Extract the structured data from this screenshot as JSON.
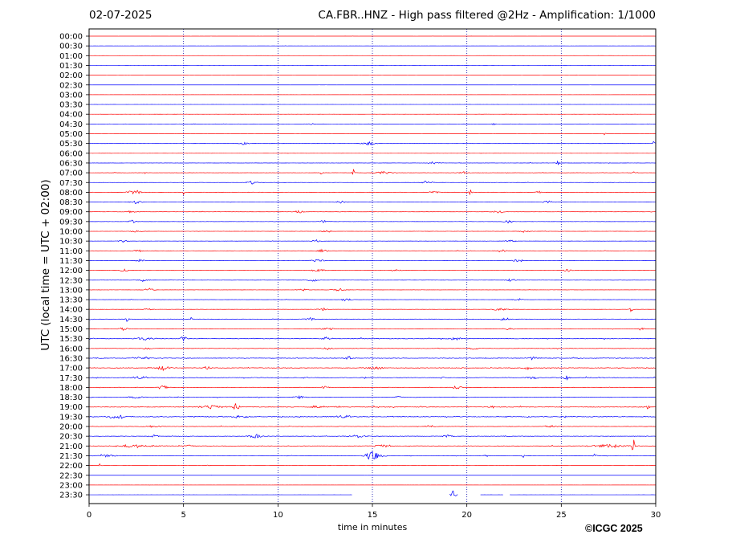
{
  "header": {
    "date": "02-07-2025",
    "title": "CA.FBR..HNZ - High pass filtered @2Hz - Amplification: 1/1000"
  },
  "copyright": "©ICGC 2025",
  "chart_data": {
    "type": "line",
    "title": "CA.FBR..HNZ - High pass filtered @2Hz - Amplification: 1/1000",
    "xlabel": "time in minutes",
    "ylabel": "UTC (local time = UTC + 02:00)",
    "xlim": [
      0,
      30
    ],
    "x_ticks": [
      0,
      5,
      10,
      15,
      20,
      25,
      30
    ],
    "grid": "vertical dotted at 5-minute intervals",
    "colors": {
      "red": "#ff0000",
      "blue": "#0000ff"
    },
    "rows": [
      {
        "label": "00:00",
        "color": "red",
        "activity": 0.05,
        "events": []
      },
      {
        "label": "00:30",
        "color": "blue",
        "activity": 0.05,
        "events": []
      },
      {
        "label": "01:00",
        "color": "red",
        "activity": 0.05,
        "events": []
      },
      {
        "label": "01:30",
        "color": "blue",
        "activity": 0.05,
        "events": []
      },
      {
        "label": "02:00",
        "color": "red",
        "activity": 0.05,
        "events": []
      },
      {
        "label": "02:30",
        "color": "blue",
        "activity": 0.05,
        "events": []
      },
      {
        "label": "03:00",
        "color": "red",
        "activity": 0.05,
        "events": []
      },
      {
        "label": "03:30",
        "color": "blue",
        "activity": 0.05,
        "events": []
      },
      {
        "label": "04:00",
        "color": "red",
        "activity": 0.06,
        "events": []
      },
      {
        "label": "04:30",
        "color": "blue",
        "activity": 0.1,
        "events": [
          [
            5.5,
            0.2,
            1
          ],
          [
            11.8,
            0.2,
            1
          ],
          [
            21.4,
            0.1,
            4
          ]
        ]
      },
      {
        "label": "05:00",
        "color": "red",
        "activity": 0.06,
        "events": [
          [
            27.3,
            0.1,
            2
          ]
        ]
      },
      {
        "label": "05:30",
        "color": "blue",
        "activity": 0.15,
        "events": [
          [
            8.2,
            0.3,
            2
          ],
          [
            14.8,
            0.4,
            3
          ],
          [
            29.9,
            0.1,
            3
          ]
        ]
      },
      {
        "label": "06:00",
        "color": "red",
        "activity": 0.06,
        "events": []
      },
      {
        "label": "06:30",
        "color": "blue",
        "activity": 0.15,
        "events": [
          [
            18.2,
            0.4,
            2
          ],
          [
            24.8,
            0.1,
            4
          ]
        ]
      },
      {
        "label": "07:00",
        "color": "red",
        "activity": 0.2,
        "events": [
          [
            3,
            0.1,
            2
          ],
          [
            12.3,
            0.1,
            3
          ],
          [
            14,
            0.1,
            6
          ],
          [
            15.5,
            0.6,
            2
          ],
          [
            19.8,
            0.3,
            2
          ],
          [
            28.8,
            0.2,
            2
          ]
        ]
      },
      {
        "label": "07:30",
        "color": "blue",
        "activity": 0.15,
        "events": [
          [
            8.6,
            0.3,
            2
          ],
          [
            17.9,
            0.3,
            3
          ]
        ]
      },
      {
        "label": "08:00",
        "color": "red",
        "activity": 0.2,
        "events": [
          [
            2.4,
            0.4,
            3
          ],
          [
            5,
            0.1,
            3
          ],
          [
            18.3,
            0.3,
            2
          ],
          [
            20.2,
            0.1,
            4
          ],
          [
            23.8,
            0.2,
            2
          ]
        ]
      },
      {
        "label": "08:30",
        "color": "blue",
        "activity": 0.15,
        "events": [
          [
            2.5,
            0.4,
            2
          ],
          [
            13.3,
            0.3,
            2
          ],
          [
            24.3,
            0.3,
            2
          ]
        ]
      },
      {
        "label": "09:00",
        "color": "red",
        "activity": 0.15,
        "events": [
          [
            2.3,
            0.4,
            2
          ],
          [
            11.1,
            0.3,
            2
          ],
          [
            21.7,
            0.3,
            2
          ]
        ]
      },
      {
        "label": "09:30",
        "color": "blue",
        "activity": 0.15,
        "events": [
          [
            2.3,
            0.3,
            2
          ],
          [
            12.4,
            0.3,
            2
          ],
          [
            22.2,
            0.3,
            2
          ]
        ]
      },
      {
        "label": "10:00",
        "color": "red",
        "activity": 0.15,
        "events": [
          [
            2.5,
            0.3,
            2
          ],
          [
            12.6,
            0.3,
            2
          ],
          [
            23.1,
            0.3,
            2
          ]
        ]
      },
      {
        "label": "10:30",
        "color": "blue",
        "activity": 0.15,
        "events": [
          [
            1.8,
            0.3,
            2
          ],
          [
            12,
            0.3,
            2
          ],
          [
            22.3,
            0.3,
            2
          ]
        ]
      },
      {
        "label": "11:00",
        "color": "red",
        "activity": 0.15,
        "events": [
          [
            2.6,
            0.3,
            2
          ],
          [
            12.4,
            0.4,
            2
          ],
          [
            21.8,
            0.3,
            2
          ]
        ]
      },
      {
        "label": "11:30",
        "color": "blue",
        "activity": 0.15,
        "events": [
          [
            2.7,
            0.3,
            2
          ],
          [
            12.1,
            0.4,
            2
          ],
          [
            22.7,
            0.3,
            2
          ]
        ]
      },
      {
        "label": "12:00",
        "color": "red",
        "activity": 0.18,
        "events": [
          [
            1.8,
            0.3,
            2
          ],
          [
            12.2,
            0.5,
            2
          ],
          [
            16.3,
            0.3,
            2
          ],
          [
            25.3,
            0.3,
            2
          ]
        ]
      },
      {
        "label": "12:30",
        "color": "blue",
        "activity": 0.15,
        "events": [
          [
            2.9,
            0.3,
            2
          ],
          [
            11.9,
            0.3,
            2
          ],
          [
            22.3,
            0.3,
            2
          ]
        ]
      },
      {
        "label": "13:00",
        "color": "red",
        "activity": 0.15,
        "events": [
          [
            3.2,
            0.3,
            2
          ],
          [
            11.3,
            0.3,
            2
          ],
          [
            13.2,
            0.4,
            2
          ]
        ]
      },
      {
        "label": "13:30",
        "color": "blue",
        "activity": 0.12,
        "events": [
          [
            13.6,
            0.3,
            2
          ],
          [
            22.7,
            0.3,
            2
          ]
        ]
      },
      {
        "label": "14:00",
        "color": "red",
        "activity": 0.15,
        "events": [
          [
            3.1,
            0.3,
            2
          ],
          [
            12.4,
            0.3,
            2
          ],
          [
            21.8,
            0.5,
            2
          ],
          [
            28.7,
            0.1,
            4
          ]
        ]
      },
      {
        "label": "14:30",
        "color": "blue",
        "activity": 0.2,
        "events": [
          [
            0.1,
            0.1,
            3
          ],
          [
            2,
            0.1,
            4
          ],
          [
            5.4,
            0.1,
            3
          ],
          [
            11.7,
            0.3,
            2
          ],
          [
            22,
            0.3,
            2
          ]
        ]
      },
      {
        "label": "15:00",
        "color": "red",
        "activity": 0.2,
        "events": [
          [
            1.8,
            0.3,
            2
          ],
          [
            12.6,
            0.4,
            2
          ],
          [
            22.2,
            0.3,
            2
          ],
          [
            29.2,
            0.2,
            2
          ]
        ]
      },
      {
        "label": "15:30",
        "color": "blue",
        "activity": 0.45,
        "events": [
          [
            2.9,
            0.5,
            2
          ],
          [
            5,
            0.2,
            4
          ],
          [
            12.6,
            0.3,
            2
          ],
          [
            19.3,
            0.4,
            2
          ]
        ]
      },
      {
        "label": "16:00",
        "color": "red",
        "activity": 0.3,
        "events": [
          [
            3.1,
            0.3,
            2
          ],
          [
            12.6,
            0.3,
            2
          ],
          [
            20.4,
            0.3,
            2
          ]
        ]
      },
      {
        "label": "16:30",
        "color": "blue",
        "activity": 0.45,
        "events": [
          [
            2.9,
            0.4,
            2
          ],
          [
            13.7,
            0.2,
            3
          ],
          [
            23.5,
            0.2,
            3
          ]
        ]
      },
      {
        "label": "17:00",
        "color": "red",
        "activity": 0.45,
        "events": [
          [
            3.9,
            0.4,
            3
          ],
          [
            6.3,
            0.3,
            2
          ],
          [
            15.2,
            0.4,
            2
          ],
          [
            23.2,
            0.3,
            2
          ]
        ]
      },
      {
        "label": "17:30",
        "color": "blue",
        "activity": 0.45,
        "events": [
          [
            2.7,
            0.4,
            2
          ],
          [
            18.7,
            0.1,
            3
          ],
          [
            23.5,
            0.3,
            2
          ],
          [
            25.3,
            0.2,
            3
          ]
        ]
      },
      {
        "label": "18:00",
        "color": "red",
        "activity": 0.3,
        "events": [
          [
            3.9,
            0.3,
            3
          ],
          [
            12.5,
            0.2,
            2
          ],
          [
            19.5,
            0.3,
            2
          ]
        ]
      },
      {
        "label": "18:30",
        "color": "blue",
        "activity": 0.35,
        "events": [
          [
            2.5,
            0.4,
            2
          ],
          [
            11.1,
            0.3,
            2
          ],
          [
            16.4,
            0.2,
            2
          ]
        ]
      },
      {
        "label": "19:00",
        "color": "red",
        "activity": 0.5,
        "events": [
          [
            6.5,
            0.8,
            2
          ],
          [
            7.8,
            0.2,
            5
          ],
          [
            12,
            0.3,
            2
          ],
          [
            21.3,
            0.2,
            2
          ],
          [
            29.6,
            0.1,
            3
          ]
        ]
      },
      {
        "label": "19:30",
        "color": "blue",
        "activity": 0.5,
        "events": [
          [
            1.5,
            0.5,
            3
          ],
          [
            8,
            0.5,
            2
          ],
          [
            13.5,
            0.4,
            2
          ],
          [
            23.3,
            0.1,
            2
          ]
        ]
      },
      {
        "label": "20:00",
        "color": "red",
        "activity": 0.3,
        "events": [
          [
            3.5,
            0.5,
            2
          ],
          [
            18,
            0.3,
            2
          ],
          [
            24.5,
            0.4,
            2
          ]
        ]
      },
      {
        "label": "20:30",
        "color": "blue",
        "activity": 0.35,
        "events": [
          [
            3.5,
            0.2,
            3
          ],
          [
            8.8,
            0.4,
            3
          ],
          [
            14.2,
            0.5,
            2
          ],
          [
            19,
            0.3,
            2
          ]
        ]
      },
      {
        "label": "21:00",
        "color": "red",
        "activity": 0.35,
        "events": [
          [
            2.5,
            1.2,
            2
          ],
          [
            5.2,
            0.3,
            2
          ],
          [
            15.6,
            0.5,
            2
          ],
          [
            27.5,
            1.2,
            2
          ],
          [
            28.8,
            0.1,
            11
          ]
        ]
      },
      {
        "label": "21:30",
        "color": "blue",
        "activity": 0.25,
        "events": [
          [
            0.8,
            0.6,
            2
          ],
          [
            15.1,
            0.5,
            7
          ],
          [
            21,
            0.1,
            3
          ],
          [
            23,
            0.1,
            2
          ],
          [
            26.8,
            0.1,
            3
          ]
        ]
      },
      {
        "label": "22:00",
        "color": "red",
        "activity": 0.08,
        "events": [
          [
            0.6,
            0.1,
            3
          ],
          [
            6.3,
            0.1,
            1
          ]
        ]
      },
      {
        "label": "22:30",
        "color": "blue",
        "activity": 0.04,
        "events": []
      },
      {
        "label": "23:00",
        "color": "red",
        "activity": 0.04,
        "events": []
      },
      {
        "label": "23:30",
        "color": "blue",
        "activity": 0.04,
        "events": [
          [
            19.3,
            0.15,
            9
          ]
        ],
        "gaps": [
          [
            13.95,
            19.05
          ],
          [
            19.55,
            20.7
          ],
          [
            21.95,
            22.25
          ]
        ]
      }
    ]
  }
}
